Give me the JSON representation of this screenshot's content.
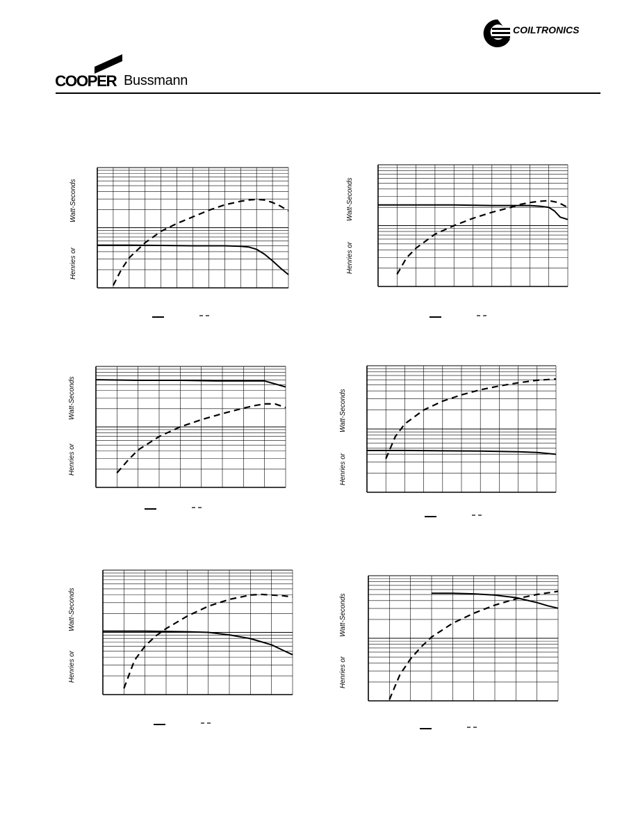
{
  "header": {
    "brand_cooper": "COOPER",
    "brand_bussmann": "Bussmann",
    "brand_coiltronics": "COILTRONICS"
  },
  "icons": {
    "cooper_flag": "slanted-flag-logo",
    "coiltronics_mark": "c-swirl-logo"
  },
  "charts": [
    {
      "ylabel_a": "Henries or",
      "ylabel_b": "Watt-Seconds"
    },
    {
      "ylabel_a": "Henries or",
      "ylabel_b": "Watt-Seconds"
    },
    {
      "ylabel_a": "Henries or",
      "ylabel_b": "Watt-Seconds"
    },
    {
      "ylabel_a": "Henries or",
      "ylabel_b": "Watt-Seconds"
    },
    {
      "ylabel_a": "Henries or",
      "ylabel_b": "Watt-Seconds"
    },
    {
      "ylabel_a": "Henries or",
      "ylabel_b": "Watt-Seconds"
    }
  ],
  "chart_data": [
    {
      "type": "line",
      "title": "",
      "xlabel": "",
      "ylabel": "Henries or Watt-Seconds",
      "yscale": "log",
      "decades": 2,
      "x_divisions": 12,
      "grid": true,
      "legend": "bottom-center",
      "xlim": [
        0,
        12
      ],
      "ylim": [
        0,
        2
      ],
      "series": [
        {
          "style": "solid",
          "x": [
            0,
            2,
            4,
            6,
            8,
            9,
            9.5,
            10,
            10.5,
            11,
            11.5,
            12
          ],
          "y": [
            0.71,
            0.71,
            0.705,
            0.7,
            0.7,
            0.69,
            0.68,
            0.64,
            0.56,
            0.45,
            0.33,
            0.22
          ]
        },
        {
          "style": "dashed",
          "x": [
            1,
            1.5,
            2,
            3,
            4,
            5,
            6,
            7,
            8,
            9,
            9.5,
            10,
            10.5,
            11,
            11.5,
            12
          ],
          "y": [
            0.04,
            0.3,
            0.5,
            0.75,
            0.94,
            1.07,
            1.18,
            1.29,
            1.38,
            1.44,
            1.46,
            1.47,
            1.46,
            1.42,
            1.36,
            1.28
          ]
        }
      ]
    },
    {
      "type": "line",
      "title": "",
      "xlabel": "",
      "ylabel": "Henries or Watt-Seconds",
      "yscale": "log",
      "decades": 2,
      "x_divisions": 10,
      "grid": true,
      "legend": "bottom-center",
      "xlim": [
        0,
        10
      ],
      "ylim": [
        0,
        2
      ],
      "series": [
        {
          "style": "solid",
          "x": [
            0,
            2,
            4,
            6,
            8,
            8.5,
            9,
            9.3,
            9.6,
            10
          ],
          "y": [
            1.34,
            1.34,
            1.34,
            1.33,
            1.33,
            1.32,
            1.3,
            1.24,
            1.14,
            1.1
          ]
        },
        {
          "style": "dashed",
          "x": [
            1,
            1.5,
            2,
            3,
            4,
            5,
            6,
            7,
            7.5,
            8,
            8.5,
            9,
            9.5,
            10
          ],
          "y": [
            0.2,
            0.47,
            0.63,
            0.86,
            1.0,
            1.12,
            1.22,
            1.3,
            1.35,
            1.38,
            1.4,
            1.41,
            1.38,
            1.3
          ]
        }
      ]
    },
    {
      "type": "line",
      "title": "",
      "xlabel": "",
      "ylabel": "Henries or Watt-Seconds",
      "yscale": "log",
      "decades": 2,
      "x_divisions": 9,
      "grid": true,
      "legend": "bottom-center",
      "xlim": [
        0,
        9
      ],
      "ylim": [
        0,
        2
      ],
      "series": [
        {
          "style": "solid",
          "x": [
            0,
            2,
            4,
            5.7,
            6.5,
            7,
            7.5,
            8,
            8.3,
            8.6,
            9
          ],
          "y": [
            1.78,
            1.77,
            1.77,
            1.76,
            1.76,
            1.76,
            1.76,
            1.76,
            1.73,
            1.7,
            1.66
          ]
        },
        {
          "style": "dashed",
          "x": [
            1,
            1.5,
            2,
            3,
            4,
            5,
            6,
            7,
            7.5,
            8,
            8.5,
            9
          ],
          "y": [
            0.24,
            0.44,
            0.62,
            0.84,
            1.0,
            1.12,
            1.22,
            1.31,
            1.35,
            1.38,
            1.38,
            1.32
          ]
        }
      ]
    },
    {
      "type": "line",
      "title": "",
      "xlabel": "",
      "ylabel": "Henries or Watt-Seconds",
      "yscale": "log",
      "decades": 2,
      "x_divisions": 10,
      "grid": true,
      "legend": "bottom-center",
      "xlim": [
        0,
        10
      ],
      "ylim": [
        0,
        2
      ],
      "series": [
        {
          "style": "solid",
          "x": [
            0,
            2,
            4,
            6,
            8,
            9,
            10
          ],
          "y": [
            0.66,
            0.66,
            0.655,
            0.65,
            0.64,
            0.63,
            0.6
          ]
        },
        {
          "style": "dashed",
          "x": [
            1,
            1.5,
            2,
            3,
            4,
            5,
            6,
            7,
            8,
            9,
            10
          ],
          "y": [
            0.53,
            0.88,
            1.08,
            1.3,
            1.44,
            1.54,
            1.62,
            1.68,
            1.73,
            1.77,
            1.79
          ]
        }
      ]
    },
    {
      "type": "line",
      "title": "",
      "xlabel": "",
      "ylabel": "Henries or Watt-Seconds",
      "yscale": "log",
      "decades": 2,
      "x_divisions": 9,
      "grid": true,
      "legend": "bottom-center",
      "xlim": [
        0,
        9
      ],
      "ylim": [
        0,
        2
      ],
      "series": [
        {
          "style": "solid",
          "x": [
            0,
            2,
            4,
            5,
            6,
            7,
            8,
            8.5,
            9
          ],
          "y": [
            1.02,
            1.02,
            1.01,
            1.0,
            0.96,
            0.9,
            0.8,
            0.72,
            0.64
          ]
        },
        {
          "style": "dashed",
          "x": [
            1,
            1.5,
            2,
            2.5,
            3,
            4,
            5,
            6,
            7,
            7.5,
            8,
            8.5,
            9
          ],
          "y": [
            0.1,
            0.55,
            0.78,
            0.94,
            1.06,
            1.26,
            1.42,
            1.53,
            1.6,
            1.61,
            1.6,
            1.59,
            1.57
          ]
        }
      ]
    },
    {
      "type": "line",
      "title": "",
      "xlabel": "",
      "ylabel": "Henries or Watt-Seconds",
      "yscale": "log",
      "decades": 2,
      "x_divisions": 9,
      "grid": true,
      "legend": "bottom-center",
      "xlim": [
        0,
        9
      ],
      "ylim": [
        0,
        2
      ],
      "series": [
        {
          "style": "solid",
          "x": [
            3,
            4,
            5,
            6,
            6.5,
            7,
            7.5,
            8,
            8.5,
            9
          ],
          "y": [
            1.72,
            1.72,
            1.71,
            1.69,
            1.67,
            1.65,
            1.61,
            1.57,
            1.52,
            1.48
          ]
        },
        {
          "style": "dashed",
          "x": [
            1,
            1.5,
            2,
            2.5,
            3,
            4,
            5,
            6,
            7,
            8,
            9
          ],
          "y": [
            0.02,
            0.42,
            0.67,
            0.86,
            1.02,
            1.24,
            1.4,
            1.53,
            1.63,
            1.7,
            1.75
          ]
        }
      ]
    }
  ]
}
